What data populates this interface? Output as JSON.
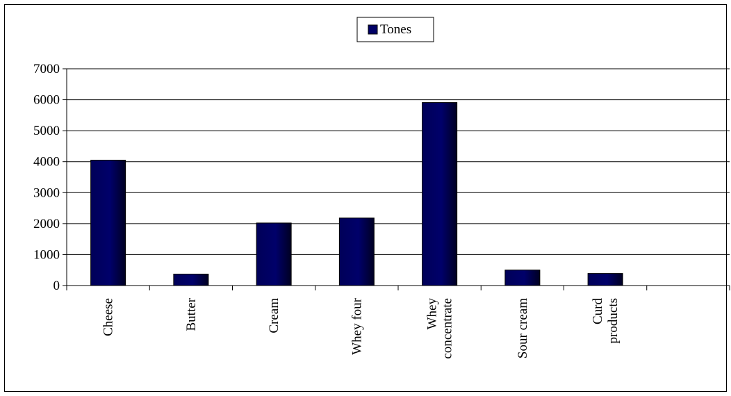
{
  "chart_data": {
    "type": "bar",
    "categories": [
      [
        "Cheese"
      ],
      [
        "Butter"
      ],
      [
        "Cream"
      ],
      [
        "Whey four"
      ],
      [
        "Whey",
        "concentrate"
      ],
      [
        "Sour cream"
      ],
      [
        "Curd",
        "products"
      ],
      [
        ""
      ]
    ],
    "series": [
      {
        "name": "Tones",
        "values": [
          4050,
          370,
          2020,
          2180,
          5910,
          500,
          390,
          0
        ],
        "color": "#000066"
      }
    ],
    "ylim": [
      0,
      7000
    ],
    "yticks": [
      0,
      1000,
      2000,
      3000,
      4000,
      5000,
      6000,
      7000
    ],
    "grid": true,
    "legend": "top-center",
    "xlabel": "",
    "ylabel": "",
    "title": ""
  }
}
